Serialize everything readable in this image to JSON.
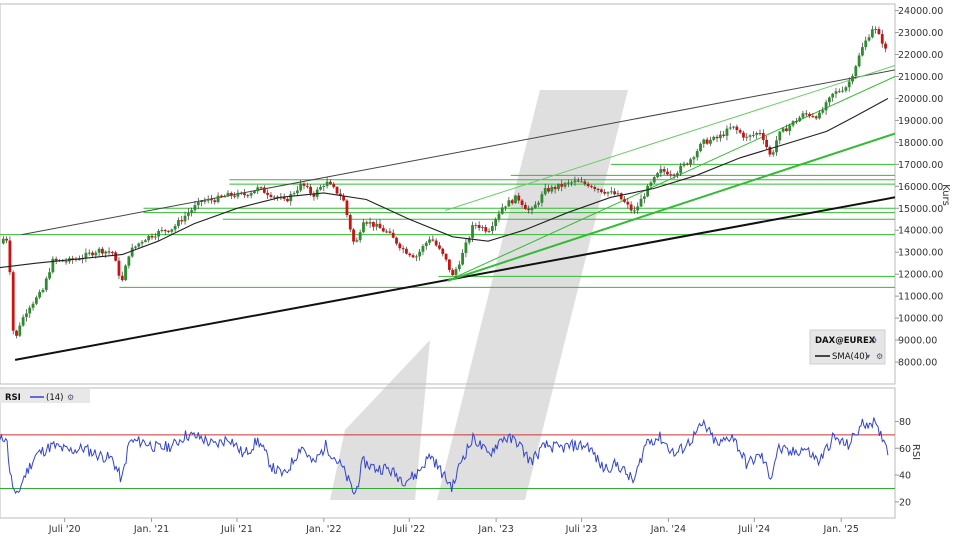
{
  "colors": {
    "up": "#2e8b2e",
    "down": "#cc1111",
    "sma": "#222222",
    "rsi": "#3344cc",
    "rsi_upper": "#cc3333",
    "rsi_lower": "#33aa33",
    "support": "#33bb33",
    "watermark": "#dcdcdc"
  },
  "chart_data": [
    {
      "type": "candlestick",
      "ylabel": "Kurs",
      "ylim": [
        7000,
        24300
      ],
      "yticks": [
        "24000.00",
        "23000.00",
        "22000.00",
        "21000.00",
        "20000.00",
        "19000.00",
        "18000.00",
        "17000.00",
        "16000.00",
        "15000.00",
        "14000.00",
        "13000.00",
        "12000.00",
        "11000.00",
        "10000.00",
        "9000.00",
        "8000.00"
      ],
      "xlim": [
        "2020-02-15",
        "2025-04-25"
      ],
      "xticks": [
        {
          "date": "2020-07-01",
          "label": "Juli '20"
        },
        {
          "date": "2021-01-01",
          "label": "Jan. '21"
        },
        {
          "date": "2021-07-01",
          "label": "Juli '21"
        },
        {
          "date": "2022-01-01",
          "label": "Jan. '22"
        },
        {
          "date": "2022-07-01",
          "label": "Juli '22"
        },
        {
          "date": "2023-01-01",
          "label": "Jan. '23"
        },
        {
          "date": "2023-07-01",
          "label": "Juli '23"
        },
        {
          "date": "2024-01-01",
          "label": "Jan. '24"
        },
        {
          "date": "2024-07-01",
          "label": "Juli '24"
        },
        {
          "date": "2025-01-01",
          "label": "Jan. '25"
        }
      ],
      "close_series": [
        [
          "2020-02-15",
          13400
        ],
        [
          "2020-02-28",
          13800
        ],
        [
          "2020-03-08",
          12000
        ],
        [
          "2020-03-16",
          8600
        ],
        [
          "2020-03-25",
          9600
        ],
        [
          "2020-04-15",
          10500
        ],
        [
          "2020-05-15",
          11200
        ],
        [
          "2020-06-05",
          12600
        ],
        [
          "2020-07-10",
          12600
        ],
        [
          "2020-08-10",
          12800
        ],
        [
          "2020-09-10",
          13100
        ],
        [
          "2020-10-10",
          13000
        ],
        [
          "2020-10-30",
          11600
        ],
        [
          "2020-11-15",
          13000
        ],
        [
          "2020-12-15",
          13600
        ],
        [
          "2021-01-15",
          13900
        ],
        [
          "2021-02-15",
          14100
        ],
        [
          "2021-03-15",
          14700
        ],
        [
          "2021-04-15",
          15300
        ],
        [
          "2021-05-15",
          15400
        ],
        [
          "2021-06-15",
          15600
        ],
        [
          "2021-07-15",
          15600
        ],
        [
          "2021-08-15",
          15900
        ],
        [
          "2021-09-15",
          15600
        ],
        [
          "2021-10-10",
          15300
        ],
        [
          "2021-11-15",
          16100
        ],
        [
          "2021-12-10",
          15600
        ],
        [
          "2022-01-05",
          16200
        ],
        [
          "2022-02-10",
          15500
        ],
        [
          "2022-03-08",
          13200
        ],
        [
          "2022-03-25",
          14500
        ],
        [
          "2022-04-20",
          14200
        ],
        [
          "2022-05-15",
          13900
        ],
        [
          "2022-06-20",
          13100
        ],
        [
          "2022-07-15",
          12800
        ],
        [
          "2022-08-15",
          13700
        ],
        [
          "2022-09-15",
          12700
        ],
        [
          "2022-10-01",
          11900
        ],
        [
          "2022-10-20",
          12800
        ],
        [
          "2022-11-15",
          14300
        ],
        [
          "2022-12-15",
          14000
        ],
        [
          "2023-01-15",
          15100
        ],
        [
          "2023-02-15",
          15500
        ],
        [
          "2023-03-15",
          14800
        ],
        [
          "2023-04-15",
          15800
        ],
        [
          "2023-05-15",
          16000
        ],
        [
          "2023-06-15",
          16200
        ],
        [
          "2023-07-15",
          16100
        ],
        [
          "2023-08-15",
          15800
        ],
        [
          "2023-09-15",
          15600
        ],
        [
          "2023-10-20",
          14800
        ],
        [
          "2023-11-15",
          15800
        ],
        [
          "2023-12-15",
          16700
        ],
        [
          "2024-01-15",
          16600
        ],
        [
          "2024-02-15",
          17200
        ],
        [
          "2024-03-15",
          18000
        ],
        [
          "2024-04-15",
          18200
        ],
        [
          "2024-05-15",
          18700
        ],
        [
          "2024-06-15",
          18200
        ],
        [
          "2024-07-15",
          18500
        ],
        [
          "2024-08-05",
          17300
        ],
        [
          "2024-08-20",
          18300
        ],
        [
          "2024-09-15",
          18800
        ],
        [
          "2024-10-15",
          19300
        ],
        [
          "2024-11-15",
          19200
        ],
        [
          "2024-12-15",
          20200
        ],
        [
          "2025-01-15",
          20600
        ],
        [
          "2025-02-15",
          22300
        ],
        [
          "2025-03-10",
          23300
        ],
        [
          "2025-03-20",
          22900
        ],
        [
          "2025-04-01",
          22500
        ],
        [
          "2025-04-10",
          21800
        ]
      ],
      "indicators": [
        {
          "name": "SMA(40)",
          "values": [
            [
              "2020-02-15",
              12300
            ],
            [
              "2020-05-01",
              12500
            ],
            [
              "2020-08-01",
              12700
            ],
            [
              "2020-11-01",
              12900
            ],
            [
              "2021-01-15",
              13500
            ],
            [
              "2021-04-01",
              14300
            ],
            [
              "2021-07-01",
              15000
            ],
            [
              "2021-10-01",
              15500
            ],
            [
              "2022-01-01",
              15700
            ],
            [
              "2022-04-01",
              15400
            ],
            [
              "2022-07-01",
              14500
            ],
            [
              "2022-10-01",
              13700
            ],
            [
              "2022-12-15",
              13500
            ],
            [
              "2023-03-01",
              14000
            ],
            [
              "2023-06-01",
              14800
            ],
            [
              "2023-09-01",
              15500
            ],
            [
              "2023-12-01",
              15900
            ],
            [
              "2024-03-01",
              16500
            ],
            [
              "2024-06-01",
              17300
            ],
            [
              "2024-09-01",
              17900
            ],
            [
              "2024-12-01",
              18500
            ],
            [
              "2025-02-01",
              19200
            ],
            [
              "2025-04-10",
              20000
            ]
          ]
        }
      ],
      "trendlines": [
        {
          "from": [
            "2020-04-01",
            13800
          ],
          "to": [
            "2025-04-25",
            21300
          ],
          "color": "#444444",
          "width": 1
        },
        {
          "from": [
            "2020-03-18",
            8100
          ],
          "to": [
            "2025-04-25",
            15500
          ],
          "color": "#111111",
          "width": 2
        },
        {
          "from": [
            "2022-09-20",
            11700
          ],
          "to": [
            "2025-04-25",
            18400
          ],
          "color": "#33bb33",
          "width": 2
        },
        {
          "from": [
            "2022-09-20",
            11700
          ],
          "to": [
            "2025-04-25",
            21000
          ],
          "color": "#33bb33",
          "width": 1
        },
        {
          "from": [
            "2022-09-15",
            14900
          ],
          "to": [
            "2025-04-25",
            21500
          ],
          "color": "#66cc66",
          "width": 1
        }
      ],
      "support_levels": [
        {
          "value": 17000,
          "from": "2023-09-01"
        },
        {
          "value": 16500,
          "from": "2023-02-01"
        },
        {
          "value": 16300,
          "from": "2021-06-15"
        },
        {
          "value": 16100,
          "from": "2021-06-15"
        },
        {
          "value": 15000,
          "from": "2020-12-15"
        },
        {
          "value": 14800,
          "from": "2020-12-15"
        },
        {
          "value": 14500,
          "from": "2021-06-01"
        },
        {
          "value": 13800,
          "from": "2020-02-15"
        },
        {
          "value": 11900,
          "from": "2022-09-01"
        },
        {
          "value": 11400,
          "from": "2020-10-25"
        }
      ],
      "legend": {
        "position": "bottom-right",
        "symbol": "DAX@EUREX",
        "sma_label": "SMA(40)"
      }
    },
    {
      "type": "line",
      "title": "RSI",
      "series": [
        {
          "name": "(14)",
          "values": [
            [
              "2020-02-15",
              65
            ],
            [
              "2020-02-28",
              70
            ],
            [
              "2020-03-08",
              40
            ],
            [
              "2020-03-20",
              22
            ],
            [
              "2020-04-05",
              38
            ],
            [
              "2020-05-01",
              55
            ],
            [
              "2020-06-05",
              62
            ],
            [
              "2020-07-10",
              58
            ],
            [
              "2020-08-10",
              60
            ],
            [
              "2020-09-10",
              55
            ],
            [
              "2020-10-10",
              52
            ],
            [
              "2020-10-30",
              36
            ],
            [
              "2020-11-15",
              65
            ],
            [
              "2020-12-15",
              65
            ],
            [
              "2021-01-15",
              60
            ],
            [
              "2021-02-15",
              62
            ],
            [
              "2021-03-15",
              70
            ],
            [
              "2021-04-15",
              68
            ],
            [
              "2021-05-15",
              62
            ],
            [
              "2021-06-15",
              68
            ],
            [
              "2021-07-15",
              55
            ],
            [
              "2021-08-15",
              66
            ],
            [
              "2021-09-15",
              45
            ],
            [
              "2021-10-10",
              40
            ],
            [
              "2021-11-15",
              62
            ],
            [
              "2021-12-10",
              48
            ],
            [
              "2022-01-05",
              62
            ],
            [
              "2022-02-10",
              45
            ],
            [
              "2022-03-08",
              25
            ],
            [
              "2022-03-25",
              50
            ],
            [
              "2022-04-20",
              45
            ],
            [
              "2022-05-15",
              45
            ],
            [
              "2022-06-20",
              36
            ],
            [
              "2022-07-15",
              40
            ],
            [
              "2022-08-15",
              55
            ],
            [
              "2022-09-15",
              38
            ],
            [
              "2022-10-01",
              31
            ],
            [
              "2022-10-20",
              52
            ],
            [
              "2022-11-15",
              68
            ],
            [
              "2022-12-15",
              55
            ],
            [
              "2023-01-15",
              68
            ],
            [
              "2023-02-15",
              65
            ],
            [
              "2023-03-15",
              50
            ],
            [
              "2023-04-15",
              62
            ],
            [
              "2023-05-15",
              60
            ],
            [
              "2023-06-15",
              62
            ],
            [
              "2023-07-15",
              62
            ],
            [
              "2023-08-15",
              45
            ],
            [
              "2023-09-15",
              48
            ],
            [
              "2023-10-20",
              35
            ],
            [
              "2023-11-15",
              65
            ],
            [
              "2023-12-15",
              68
            ],
            [
              "2024-01-15",
              55
            ],
            [
              "2024-02-15",
              65
            ],
            [
              "2024-03-15",
              78
            ],
            [
              "2024-04-15",
              62
            ],
            [
              "2024-05-15",
              70
            ],
            [
              "2024-06-15",
              48
            ],
            [
              "2024-07-15",
              55
            ],
            [
              "2024-08-05",
              38
            ],
            [
              "2024-08-20",
              60
            ],
            [
              "2024-09-15",
              56
            ],
            [
              "2024-10-15",
              60
            ],
            [
              "2024-11-15",
              50
            ],
            [
              "2024-12-15",
              68
            ],
            [
              "2025-01-15",
              62
            ],
            [
              "2025-02-15",
              78
            ],
            [
              "2025-03-10",
              80
            ],
            [
              "2025-03-20",
              72
            ],
            [
              "2025-04-01",
              68
            ],
            [
              "2025-04-10",
              58
            ]
          ]
        }
      ],
      "ylabel": "RSI",
      "ylim": [
        8,
        93
      ],
      "yticks": [
        "80",
        "60",
        "40",
        "20"
      ],
      "levels": [
        {
          "value": 70,
          "color": "#cc3333"
        },
        {
          "value": 30,
          "color": "#33aa33"
        }
      ]
    }
  ]
}
